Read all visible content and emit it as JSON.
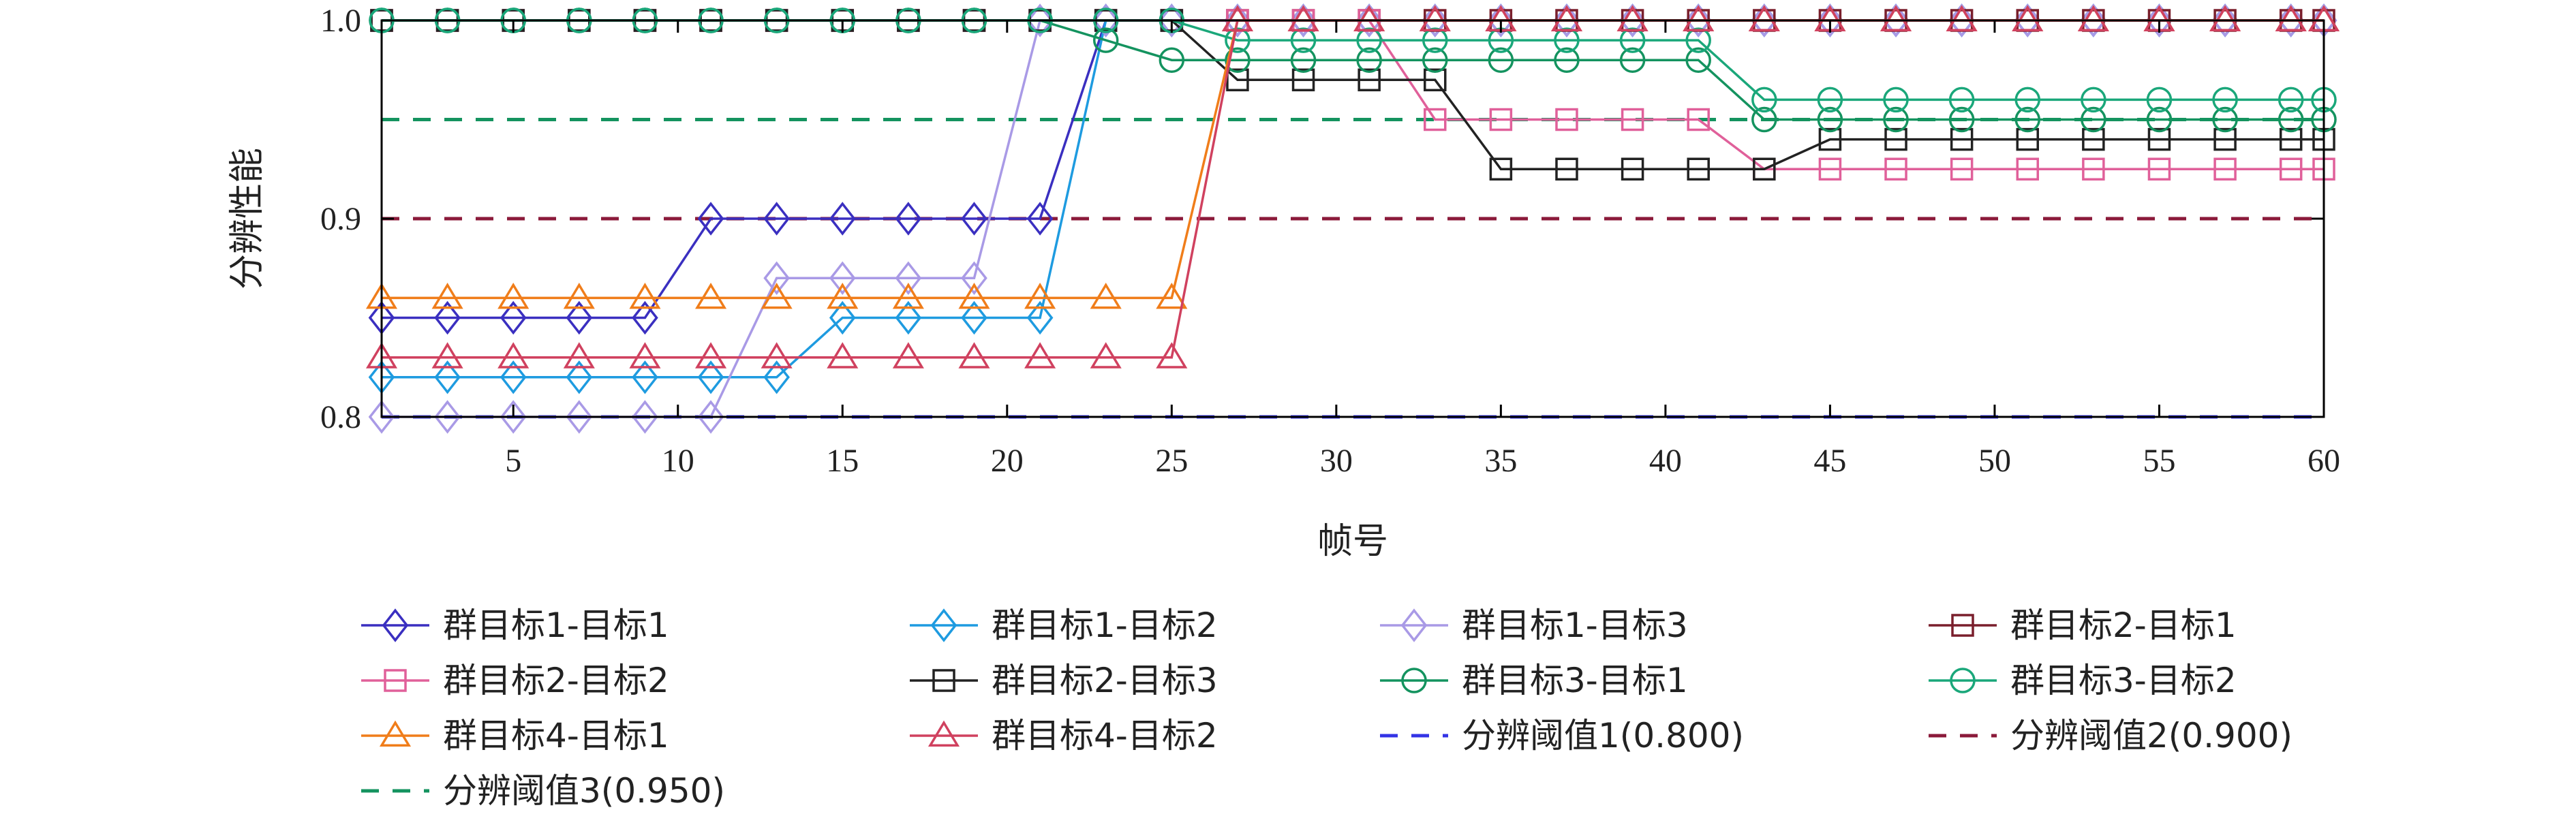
{
  "chart_data": {
    "type": "line",
    "xlabel": "帧号",
    "ylabel": "分辨性能",
    "xlim": [
      1,
      60
    ],
    "ylim": [
      0.8,
      1.0
    ],
    "xticks": [
      5,
      10,
      15,
      20,
      25,
      30,
      35,
      40,
      45,
      50,
      55,
      60
    ],
    "xtick_labels": [
      "5",
      "10",
      "15",
      "20",
      "25",
      "30",
      "35",
      "40",
      "45",
      "50",
      "55",
      "60"
    ],
    "yticks": [
      0.8,
      0.9,
      1.0
    ],
    "ytick_labels": [
      "0.8",
      "0.9",
      "1.0"
    ],
    "grid": false,
    "legend_position": "bottom",
    "x": [
      1,
      3,
      5,
      7,
      9,
      11,
      13,
      15,
      17,
      19,
      21,
      23,
      25,
      27,
      29,
      31,
      33,
      35,
      37,
      39,
      41,
      43,
      45,
      47,
      49,
      51,
      53,
      55,
      57,
      59,
      60
    ],
    "series": [
      {
        "name": "群目标1-目标1",
        "marker": "diamond",
        "color": "#3a2fc0",
        "values": [
          0.85,
          0.85,
          0.85,
          0.85,
          0.85,
          0.9,
          0.9,
          0.9,
          0.9,
          0.9,
          0.9,
          1.0,
          1.0,
          1.0,
          1.0,
          1.0,
          1.0,
          1.0,
          1.0,
          1.0,
          1.0,
          1.0,
          1.0,
          1.0,
          1.0,
          1.0,
          1.0,
          1.0,
          1.0,
          1.0,
          1.0
        ]
      },
      {
        "name": "群目标1-目标2",
        "marker": "diamond",
        "color": "#1e9be0",
        "values": [
          0.82,
          0.82,
          0.82,
          0.82,
          0.82,
          0.82,
          0.82,
          0.85,
          0.85,
          0.85,
          0.85,
          1.0,
          1.0,
          1.0,
          1.0,
          1.0,
          1.0,
          1.0,
          1.0,
          1.0,
          1.0,
          1.0,
          1.0,
          1.0,
          1.0,
          1.0,
          1.0,
          1.0,
          1.0,
          1.0,
          1.0
        ]
      },
      {
        "name": "群目标1-目标3",
        "marker": "diamond",
        "color": "#a99ae6",
        "values": [
          0.8,
          0.8,
          0.8,
          0.8,
          0.8,
          0.8,
          0.87,
          0.87,
          0.87,
          0.87,
          1.0,
          1.0,
          1.0,
          1.0,
          1.0,
          1.0,
          1.0,
          1.0,
          1.0,
          1.0,
          1.0,
          1.0,
          1.0,
          1.0,
          1.0,
          1.0,
          1.0,
          1.0,
          1.0,
          1.0,
          1.0
        ]
      },
      {
        "name": "群目标2-目标1",
        "marker": "square",
        "color": "#7a1f2c",
        "values": [
          1.0,
          1.0,
          1.0,
          1.0,
          1.0,
          1.0,
          1.0,
          1.0,
          1.0,
          1.0,
          1.0,
          1.0,
          1.0,
          1.0,
          1.0,
          1.0,
          1.0,
          1.0,
          1.0,
          1.0,
          1.0,
          1.0,
          1.0,
          1.0,
          1.0,
          1.0,
          1.0,
          1.0,
          1.0,
          1.0,
          1.0
        ]
      },
      {
        "name": "群目标2-目标2",
        "marker": "square",
        "color": "#e0609a",
        "values": [
          1.0,
          1.0,
          1.0,
          1.0,
          1.0,
          1.0,
          1.0,
          1.0,
          1.0,
          1.0,
          1.0,
          1.0,
          1.0,
          1.0,
          1.0,
          1.0,
          0.95,
          0.95,
          0.95,
          0.95,
          0.95,
          0.925,
          0.925,
          0.925,
          0.925,
          0.925,
          0.925,
          0.925,
          0.925,
          0.925,
          0.925
        ]
      },
      {
        "name": "群目标2-目标3",
        "marker": "square",
        "color": "#222222",
        "values": [
          1.0,
          1.0,
          1.0,
          1.0,
          1.0,
          1.0,
          1.0,
          1.0,
          1.0,
          1.0,
          1.0,
          1.0,
          1.0,
          0.97,
          0.97,
          0.97,
          0.97,
          0.925,
          0.925,
          0.925,
          0.925,
          0.925,
          0.94,
          0.94,
          0.94,
          0.94,
          0.94,
          0.94,
          0.94,
          0.94,
          0.94
        ]
      },
      {
        "name": "群目标3-目标1",
        "marker": "circle",
        "color": "#14935f",
        "values": [
          1.0,
          1.0,
          1.0,
          1.0,
          1.0,
          1.0,
          1.0,
          1.0,
          1.0,
          1.0,
          1.0,
          0.99,
          0.98,
          0.98,
          0.98,
          0.98,
          0.98,
          0.98,
          0.98,
          0.98,
          0.98,
          0.95,
          0.95,
          0.95,
          0.95,
          0.95,
          0.95,
          0.95,
          0.95,
          0.95,
          0.95
        ]
      },
      {
        "name": "群目标3-目标2",
        "marker": "circle",
        "color": "#1aa77a",
        "values": [
          1.0,
          1.0,
          1.0,
          1.0,
          1.0,
          1.0,
          1.0,
          1.0,
          1.0,
          1.0,
          1.0,
          1.0,
          1.0,
          0.99,
          0.99,
          0.99,
          0.99,
          0.99,
          0.99,
          0.99,
          0.99,
          0.96,
          0.96,
          0.96,
          0.96,
          0.96,
          0.96,
          0.96,
          0.96,
          0.96,
          0.96
        ]
      },
      {
        "name": "群目标4-目标1",
        "marker": "triangle",
        "color": "#f07d1a",
        "values": [
          0.86,
          0.86,
          0.86,
          0.86,
          0.86,
          0.86,
          0.86,
          0.86,
          0.86,
          0.86,
          0.86,
          0.86,
          0.86,
          1.0,
          1.0,
          1.0,
          1.0,
          1.0,
          1.0,
          1.0,
          1.0,
          1.0,
          1.0,
          1.0,
          1.0,
          1.0,
          1.0,
          1.0,
          1.0,
          1.0,
          1.0
        ]
      },
      {
        "name": "群目标4-目标2",
        "marker": "triangle",
        "color": "#d0415f",
        "values": [
          0.83,
          0.83,
          0.83,
          0.83,
          0.83,
          0.83,
          0.83,
          0.83,
          0.83,
          0.83,
          0.83,
          0.83,
          0.83,
          1.0,
          1.0,
          1.0,
          1.0,
          1.0,
          1.0,
          1.0,
          1.0,
          1.0,
          1.0,
          1.0,
          1.0,
          1.0,
          1.0,
          1.0,
          1.0,
          1.0,
          1.0
        ]
      }
    ],
    "thresholds": [
      {
        "name": "分辨阈值1(0.800)",
        "value": 0.8,
        "color": "#3434e6"
      },
      {
        "name": "分辨阈值2(0.900)",
        "value": 0.9,
        "color": "#8b1a3a"
      },
      {
        "name": "分辨阈值3(0.950)",
        "value": 0.95,
        "color": "#14935f"
      }
    ]
  }
}
